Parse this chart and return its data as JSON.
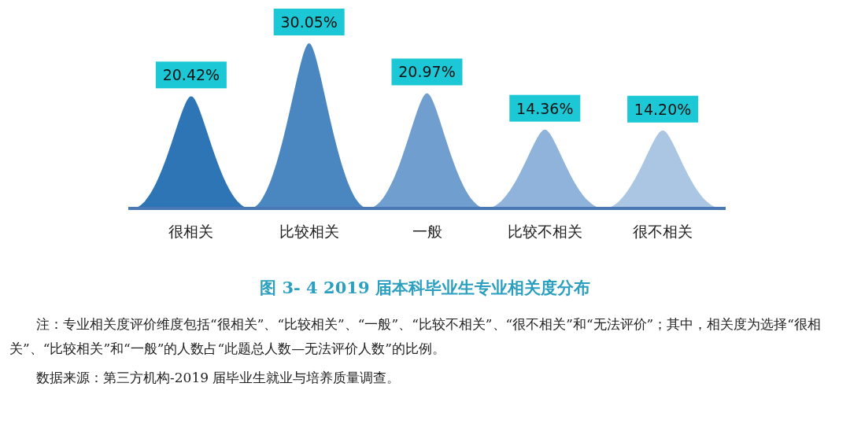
{
  "chart_data": {
    "type": "bar",
    "title": "图 3- 4    2019 届本科毕业生专业相关度分布",
    "categories": [
      "很相关",
      "比较相关",
      "一般",
      "比较不相关",
      "很不相关"
    ],
    "values": [
      20.42,
      30.05,
      20.97,
      14.36,
      14.2
    ],
    "value_labels": [
      "20.42%",
      "30.05%",
      "20.97%",
      "14.36%",
      "14.20%"
    ],
    "colors": [
      "#2e75b6",
      "#4a87c0",
      "#6f9ecf",
      "#8fb3da",
      "#abc6e3"
    ],
    "annotations": [
      "注：专业相关度评价维度包括“很相关”、“比较相关”、“一般”、“比较不相关”、“很不相关”和“无法评价”；其中，相关度为选择“很相关”、“比较相关”和“一般”的人数占“此题总人数—无法评价人数”的比例。",
      "数据来源：第三方机构-2019 届毕业生就业与培养质量调查。"
    ]
  }
}
